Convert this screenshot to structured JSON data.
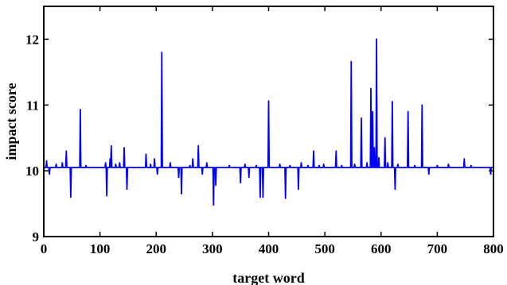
{
  "chart_data": {
    "type": "line",
    "title": "",
    "xlabel": "target word",
    "ylabel": "impact score",
    "xlim": [
      0,
      800
    ],
    "ylim": [
      9,
      12.5
    ],
    "xticks": [
      0,
      100,
      200,
      300,
      400,
      500,
      600,
      700,
      800
    ],
    "yticks": [
      9,
      10,
      11,
      12
    ],
    "grid": false,
    "baseline": 10.05,
    "series": [
      {
        "color": "#0000ff",
        "spikes": [
          {
            "x": 5,
            "y": 10.15
          },
          {
            "x": 10,
            "y": 9.95
          },
          {
            "x": 22,
            "y": 10.1
          },
          {
            "x": 33,
            "y": 10.12
          },
          {
            "x": 40,
            "y": 10.3
          },
          {
            "x": 48,
            "y": 9.6
          },
          {
            "x": 65,
            "y": 10.93
          },
          {
            "x": 75,
            "y": 10.08
          },
          {
            "x": 110,
            "y": 10.12
          },
          {
            "x": 112,
            "y": 9.62
          },
          {
            "x": 118,
            "y": 10.18
          },
          {
            "x": 120,
            "y": 10.38
          },
          {
            "x": 128,
            "y": 10.1
          },
          {
            "x": 135,
            "y": 10.12
          },
          {
            "x": 143,
            "y": 10.35
          },
          {
            "x": 148,
            "y": 9.72
          },
          {
            "x": 160,
            "y": 10.05
          },
          {
            "x": 182,
            "y": 10.25
          },
          {
            "x": 190,
            "y": 10.1
          },
          {
            "x": 197,
            "y": 10.18
          },
          {
            "x": 202,
            "y": 9.95
          },
          {
            "x": 210,
            "y": 11.8
          },
          {
            "x": 225,
            "y": 10.12
          },
          {
            "x": 240,
            "y": 9.9
          },
          {
            "x": 245,
            "y": 9.65
          },
          {
            "x": 260,
            "y": 10.08
          },
          {
            "x": 265,
            "y": 10.18
          },
          {
            "x": 275,
            "y": 10.38
          },
          {
            "x": 282,
            "y": 9.95
          },
          {
            "x": 290,
            "y": 10.12
          },
          {
            "x": 302,
            "y": 9.48
          },
          {
            "x": 306,
            "y": 9.78
          },
          {
            "x": 330,
            "y": 10.08
          },
          {
            "x": 340,
            "y": 10.05
          },
          {
            "x": 350,
            "y": 9.82
          },
          {
            "x": 358,
            "y": 10.1
          },
          {
            "x": 365,
            "y": 9.9
          },
          {
            "x": 378,
            "y": 10.08
          },
          {
            "x": 385,
            "y": 9.6
          },
          {
            "x": 390,
            "y": 9.6
          },
          {
            "x": 400,
            "y": 11.06
          },
          {
            "x": 420,
            "y": 10.1
          },
          {
            "x": 430,
            "y": 9.58
          },
          {
            "x": 438,
            "y": 10.08
          },
          {
            "x": 453,
            "y": 9.72
          },
          {
            "x": 458,
            "y": 10.12
          },
          {
            "x": 470,
            "y": 10.08
          },
          {
            "x": 480,
            "y": 10.3
          },
          {
            "x": 490,
            "y": 10.08
          },
          {
            "x": 498,
            "y": 10.1
          },
          {
            "x": 520,
            "y": 10.3
          },
          {
            "x": 530,
            "y": 10.08
          },
          {
            "x": 547,
            "y": 11.66
          },
          {
            "x": 553,
            "y": 10.1
          },
          {
            "x": 565,
            "y": 10.8
          },
          {
            "x": 575,
            "y": 10.12
          },
          {
            "x": 582,
            "y": 11.25
          },
          {
            "x": 585,
            "y": 10.9
          },
          {
            "x": 588,
            "y": 10.35
          },
          {
            "x": 592,
            "y": 12.0
          },
          {
            "x": 596,
            "y": 10.2
          },
          {
            "x": 607,
            "y": 10.5
          },
          {
            "x": 612,
            "y": 10.12
          },
          {
            "x": 620,
            "y": 11.05
          },
          {
            "x": 625,
            "y": 9.72
          },
          {
            "x": 630,
            "y": 10.1
          },
          {
            "x": 648,
            "y": 10.9
          },
          {
            "x": 660,
            "y": 10.08
          },
          {
            "x": 673,
            "y": 11.0
          },
          {
            "x": 685,
            "y": 9.95
          },
          {
            "x": 700,
            "y": 10.08
          },
          {
            "x": 710,
            "y": 10.05
          },
          {
            "x": 720,
            "y": 10.1
          },
          {
            "x": 748,
            "y": 10.18
          },
          {
            "x": 760,
            "y": 10.08
          },
          {
            "x": 775,
            "y": 10.05
          },
          {
            "x": 795,
            "y": 9.95
          }
        ]
      }
    ]
  }
}
